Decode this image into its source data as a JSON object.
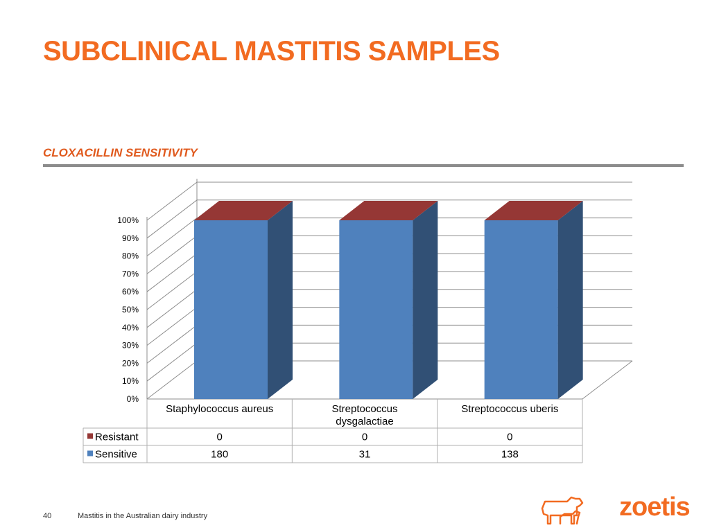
{
  "slide": {
    "title": "SUBCLINICAL MASTITIS SAMPLES",
    "subtitle": "CLOXACILLIN SENSITIVITY",
    "page_number": "40",
    "footer_text": "Mastitis in the Australian dairy industry",
    "brand_name": "zoetis",
    "brand_color": "#f26b21",
    "title_color": "#f26b21",
    "subtitle_color": "#e05a1e",
    "rule_color": "#8c8c8c",
    "logo_icon": "cow-and-calf-icon"
  },
  "chart_data": {
    "type": "bar",
    "stacked": "percent",
    "three_d": true,
    "categories": [
      "Staphylococcus aureus",
      "Streptococcus dysgalactiae",
      "Streptococcus uberis"
    ],
    "series": [
      {
        "name": "Resistant",
        "values": [
          0,
          0,
          0
        ],
        "color": "#953735"
      },
      {
        "name": "Sensitive",
        "values": [
          180,
          31,
          138
        ],
        "color": "#4f81bd"
      }
    ],
    "y_ticks": [
      "0%",
      "10%",
      "20%",
      "30%",
      "40%",
      "50%",
      "60%",
      "70%",
      "80%",
      "90%",
      "100%"
    ],
    "ylim": [
      0,
      100
    ],
    "grid": true,
    "legend": "data-table"
  }
}
